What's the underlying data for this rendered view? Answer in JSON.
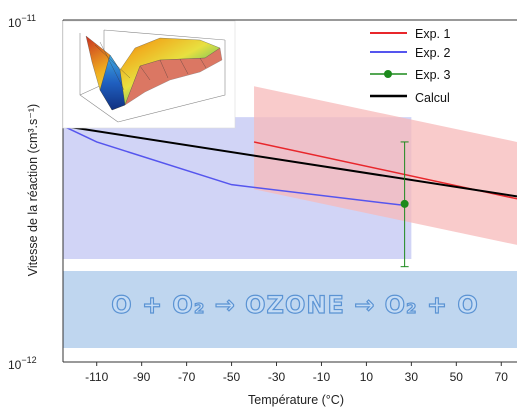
{
  "chart_data": {
    "type": "line",
    "xlabel": "Température (°C)",
    "ylabel": "Vitesse de la réaction (cm³.s⁻¹)",
    "yscale": "log",
    "xlim": [
      -125,
      77
    ],
    "ylim": [
      1e-12,
      1e-11
    ],
    "x_ticks": [
      -110,
      -90,
      -70,
      -50,
      -30,
      -10,
      10,
      30,
      50,
      70
    ],
    "x_tick_labels": [
      "-110",
      "-90",
      "-70",
      "-50",
      "-30",
      "-10",
      "10",
      "30",
      "50",
      "70"
    ],
    "y_tick_labels": [
      {
        "value": 1e-11,
        "base": "10",
        "exp": "−11"
      },
      {
        "value": 1e-12,
        "base": "10",
        "exp": "−12"
      }
    ],
    "grid": false,
    "legend_position": "top-right",
    "series": [
      {
        "name": "Exp. 1",
        "color": "#e8262b",
        "band_color": "#f7b9b9",
        "x": [
          -40,
          77
        ],
        "y": [
          4.4e-12,
          3e-12
        ],
        "band_x": [
          -40,
          77
        ],
        "band_upper": [
          6.4e-12,
          4.4e-12
        ],
        "band_lower": [
          3.2e-12,
          2.2e-12
        ]
      },
      {
        "name": "Exp. 2",
        "color": "#5555ee",
        "band_color": "#c9cdf5",
        "x": [
          -125,
          -110,
          -50,
          27
        ],
        "y": [
          4.9e-12,
          4.4e-12,
          3.3e-12,
          2.87e-12
        ],
        "band_x": [
          -125,
          30
        ],
        "band_upper": [
          5.2e-12,
          5.2e-12
        ],
        "band_lower": [
          2e-12,
          2e-12
        ]
      },
      {
        "name": "Exp. 3",
        "color": "#1c8a1c",
        "marker": "circle",
        "x": [
          27
        ],
        "y": [
          2.9e-12
        ],
        "err_low": [
          1.9e-12
        ],
        "err_high": [
          4.4e-12
        ]
      },
      {
        "name": "Calcul",
        "color": "#000000",
        "x": [
          -125,
          77
        ],
        "y": [
          4.9e-12,
          3.05e-12
        ]
      }
    ],
    "annotation": {
      "text": "O + O₂ → OZONE → O₂ + O",
      "band_color": "#bfd6ef"
    }
  },
  "inset": {
    "description_icon": "3d-surface-plot-icon",
    "colors": [
      "#c83020",
      "#f0b020",
      "#e8e040",
      "#60c060",
      "#40a8e0",
      "#2060c0"
    ]
  }
}
